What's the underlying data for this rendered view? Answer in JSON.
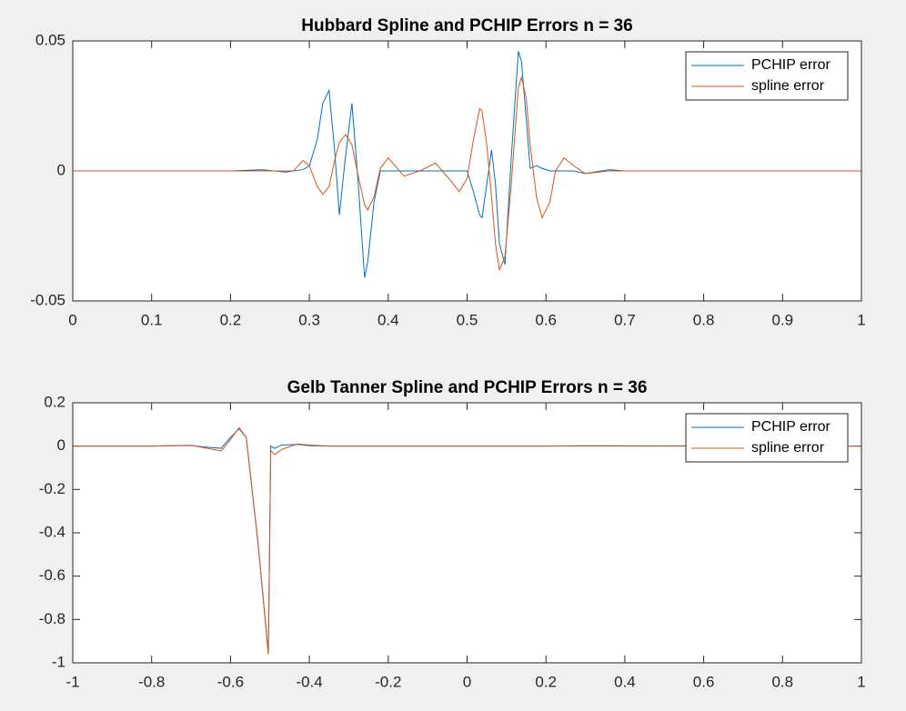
{
  "chart_data": [
    {
      "type": "line",
      "title": "Hubbard Spline and PCHIP Errors n = 36",
      "x": [
        0,
        0.2,
        0.24,
        0.27,
        0.28,
        0.292,
        0.3,
        0.31,
        0.317,
        0.325,
        0.332,
        0.338,
        0.346,
        0.354,
        0.362,
        0.37,
        0.374,
        0.382,
        0.39,
        0.4,
        0.42,
        0.44,
        0.46,
        0.48,
        0.49,
        0.5,
        0.508,
        0.516,
        0.519,
        0.525,
        0.531,
        0.536,
        0.541,
        0.548,
        0.556,
        0.565,
        0.569,
        0.575,
        0.58,
        0.588,
        0.595,
        0.605,
        0.612,
        0.623,
        0.635,
        0.65,
        0.68,
        0.7,
        1
      ],
      "series": [
        {
          "name": "PCHIP error",
          "color": "#0072bd",
          "values": [
            0,
            0,
            0.0005,
            -0.0005,
            0,
            0.0005,
            0.002,
            0.012,
            0.026,
            0.031,
            0.008,
            -0.017,
            0.006,
            0.026,
            -0.005,
            -0.041,
            -0.035,
            -0.012,
            0,
            0,
            0,
            0,
            0,
            0,
            0,
            0,
            -0.008,
            -0.017,
            -0.018,
            -0.005,
            0.008,
            -0.005,
            -0.028,
            -0.036,
            0.005,
            0.046,
            0.042,
            0.02,
            0.001,
            0.002,
            0.001,
            0,
            0,
            0,
            0,
            -0.001,
            0.0005,
            0,
            0
          ]
        },
        {
          "name": "spline error",
          "color": "#d95319",
          "values": [
            0,
            0,
            0,
            0,
            0,
            0.004,
            0.002,
            -0.006,
            -0.009,
            -0.006,
            0.004,
            0.011,
            0.014,
            0.01,
            -0.002,
            -0.013,
            -0.015,
            -0.01,
            0.001,
            0.005,
            -0.002,
            0,
            0.003,
            -0.004,
            -0.008,
            -0.003,
            0.012,
            0.024,
            0.023,
            0.01,
            -0.01,
            -0.028,
            -0.038,
            -0.033,
            -0.005,
            0.032,
            0.036,
            0.028,
            0.01,
            -0.01,
            -0.018,
            -0.012,
            0,
            0.005,
            0.002,
            -0.001,
            0,
            0,
            0
          ]
        }
      ],
      "xlim": [
        0,
        1
      ],
      "xticks": [
        0,
        0.1,
        0.2,
        0.3,
        0.4,
        0.5,
        0.6,
        0.7,
        0.8,
        0.9,
        1
      ],
      "ylim": [
        -0.05,
        0.05
      ],
      "yticks": [
        -0.05,
        0,
        0.05
      ],
      "grid": false,
      "legend": "upper right"
    },
    {
      "type": "line",
      "title": "Gelb Tanner Spline and PCHIP Errors n = 36",
      "x": [
        -1,
        -0.8,
        -0.7,
        -0.66,
        -0.624,
        -0.6,
        -0.578,
        -0.56,
        -0.53,
        -0.504,
        -0.498,
        -0.488,
        -0.47,
        -0.43,
        -0.4,
        -0.35,
        0.2,
        0.3,
        1
      ],
      "series": [
        {
          "name": "PCHIP error",
          "color": "#0072bd",
          "values": [
            0,
            0,
            0.003,
            -0.005,
            -0.01,
            0.04,
            0.08,
            0.04,
            -0.45,
            -0.96,
            0,
            -0.01,
            0.005,
            0.008,
            0.002,
            0,
            0,
            0.002,
            0
          ]
        },
        {
          "name": "spline error",
          "color": "#d95319",
          "values": [
            0,
            0,
            0.004,
            -0.01,
            -0.022,
            0.03,
            0.085,
            0.04,
            -0.45,
            -0.96,
            -0.02,
            -0.04,
            -0.015,
            0.01,
            0.005,
            0,
            0,
            0,
            0
          ]
        }
      ],
      "xlim": [
        -1,
        1
      ],
      "xticks": [
        -1,
        -0.8,
        -0.6,
        -0.4,
        -0.2,
        0,
        0.2,
        0.4,
        0.6,
        0.8,
        1
      ],
      "ylim": [
        -1,
        0.2
      ],
      "yticks": [
        -1,
        -0.8,
        -0.6,
        -0.4,
        -0.2,
        0,
        0.2
      ],
      "grid": false,
      "legend": "upper right"
    }
  ]
}
